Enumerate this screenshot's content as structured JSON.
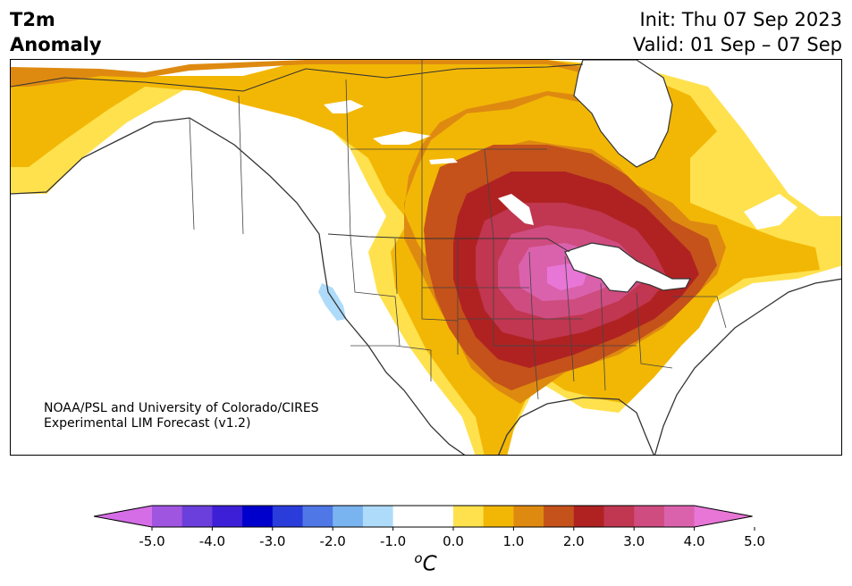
{
  "title": {
    "left_line1": "T2m",
    "left_line2": "Anomaly",
    "init": "Init: Thu 07 Sep 2023",
    "valid": "Valid: 01 Sep – 07 Sep"
  },
  "credit": {
    "line1": "NOAA/PSL and University of Colorado/CIRES",
    "line2": "Experimental LIM Forecast (v1.2)"
  },
  "colorbar": {
    "unit_letter": "C",
    "unit_prefix": "o",
    "ticks": [
      "-5.0",
      "-4.0",
      "-3.0",
      "-2.0",
      "-1.0",
      "0.0",
      "1.0",
      "2.0",
      "3.0",
      "4.0",
      "5.0"
    ],
    "levels": [
      {
        "range": "<-5.0",
        "color": "#d56de6"
      },
      {
        "range": "-5.0 to -4.5",
        "color": "#a055e0"
      },
      {
        "range": "-4.5 to -4.0",
        "color": "#6a3fdb"
      },
      {
        "range": "-4.0 to -3.5",
        "color": "#3c1fd6"
      },
      {
        "range": "-3.5 to -3.0",
        "color": "#0000cc"
      },
      {
        "range": "-3.0 to -2.5",
        "color": "#2a3ddb"
      },
      {
        "range": "-2.5 to -2.0",
        "color": "#4f77e6"
      },
      {
        "range": "-2.0 to -1.5",
        "color": "#7ab4f0"
      },
      {
        "range": "-1.5 to -1.0",
        "color": "#aedbf9"
      },
      {
        "range": "-1.0 to -0.5",
        "color": "#ffffff"
      },
      {
        "range": "-0.5 to 0.5",
        "color": "#ffffff"
      },
      {
        "range": "0.5 to 1.0",
        "color": "#ffe14d"
      },
      {
        "range": "1.0 to 1.5",
        "color": "#f2b705"
      },
      {
        "range": "1.5 to 2.0",
        "color": "#de8a10"
      },
      {
        "range": "2.0 to 2.5",
        "color": "#c4521a"
      },
      {
        "range": "2.5 to 3.0",
        "color": "#b02222"
      },
      {
        "range": "3.0 to 3.5",
        "color": "#c13650"
      },
      {
        "range": "3.5 to 4.0",
        "color": "#cf4c80"
      },
      {
        "range": "4.0 to 4.5",
        "color": "#da62ad"
      },
      {
        "range": ">4.5",
        "color": "#e776d6"
      }
    ]
  }
}
